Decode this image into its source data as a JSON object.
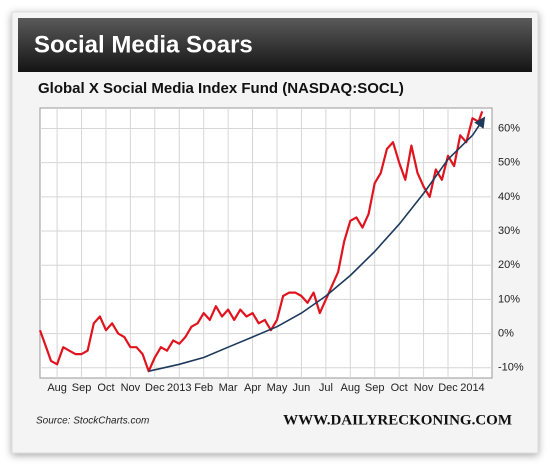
{
  "chart_data": {
    "type": "line",
    "title": "Social Media Soars",
    "subtitle": "Global X Social Media Index Fund (NASDAQ:SOCL)",
    "source": "Source: StockCharts.com",
    "credit": "WWW.DAILYRECKONING.COM",
    "grid": true,
    "xlim": [
      0.3,
      18.8
    ],
    "ylim": [
      -13,
      66
    ],
    "xticks": [
      {
        "value": 1,
        "label": "Aug"
      },
      {
        "value": 2,
        "label": "Sep"
      },
      {
        "value": 3,
        "label": "Oct"
      },
      {
        "value": 4,
        "label": "Nov"
      },
      {
        "value": 5,
        "label": "Dec"
      },
      {
        "value": 6,
        "label": "2013"
      },
      {
        "value": 7,
        "label": "Feb"
      },
      {
        "value": 8,
        "label": "Mar"
      },
      {
        "value": 9,
        "label": "Apr"
      },
      {
        "value": 10,
        "label": "May"
      },
      {
        "value": 11,
        "label": "Jun"
      },
      {
        "value": 12,
        "label": "Jul"
      },
      {
        "value": 13,
        "label": "Aug"
      },
      {
        "value": 14,
        "label": "Sep"
      },
      {
        "value": 15,
        "label": "Oct"
      },
      {
        "value": 16,
        "label": "Nov"
      },
      {
        "value": 17,
        "label": "Dec"
      },
      {
        "value": 18,
        "label": "2014"
      }
    ],
    "yticks": [
      {
        "value": -10,
        "label": "-10%"
      },
      {
        "value": 0,
        "label": "0%"
      },
      {
        "value": 10,
        "label": "10%"
      },
      {
        "value": 20,
        "label": "20%"
      },
      {
        "value": 30,
        "label": "30%"
      },
      {
        "value": 40,
        "label": "40%"
      },
      {
        "value": 50,
        "label": "50%"
      },
      {
        "value": 60,
        "label": "60%"
      }
    ],
    "series": [
      {
        "color": "#e0141e",
        "x": [
          0.3,
          0.5,
          0.75,
          1,
          1.25,
          1.5,
          1.75,
          2,
          2.25,
          2.5,
          2.75,
          3,
          3.25,
          3.5,
          3.75,
          4,
          4.25,
          4.5,
          4.75,
          5,
          5.25,
          5.5,
          5.75,
          6,
          6.25,
          6.5,
          6.75,
          7,
          7.25,
          7.5,
          7.75,
          8,
          8.25,
          8.5,
          8.75,
          9,
          9.25,
          9.5,
          9.75,
          10,
          10.25,
          10.5,
          10.75,
          11,
          11.25,
          11.5,
          11.75,
          12,
          12.25,
          12.5,
          12.75,
          13,
          13.25,
          13.5,
          13.75,
          14,
          14.25,
          14.5,
          14.75,
          15,
          15.25,
          15.5,
          15.75,
          16,
          16.25,
          16.5,
          16.75,
          17,
          17.25,
          17.5,
          17.75,
          18,
          18.25,
          18.4
        ],
        "values": [
          1,
          -3,
          -8,
          -9,
          -4,
          -5,
          -6,
          -6,
          -5,
          3,
          5,
          1,
          3,
          0,
          -1,
          -4,
          -4,
          -6,
          -11,
          -7,
          -4,
          -5,
          -2,
          -3,
          -1,
          2,
          3,
          6,
          4,
          8,
          5,
          7,
          4,
          7,
          5,
          6,
          3,
          4,
          1,
          4,
          11,
          12,
          12,
          11,
          9,
          12,
          6,
          10,
          14,
          18,
          27,
          33,
          34,
          31,
          35,
          44,
          47,
          54,
          56,
          50,
          45,
          55,
          47,
          43,
          40,
          48,
          45,
          52,
          49,
          58,
          56,
          63,
          62,
          65
        ]
      },
      {
        "color": "#1d3a5c",
        "x": [
          4.75,
          6,
          7,
          8,
          9,
          10,
          11,
          12,
          13,
          14,
          15,
          16,
          17,
          18,
          18.47
        ],
        "values": [
          -11,
          -9,
          -7,
          -4,
          -1,
          2,
          6,
          11,
          17,
          24,
          32,
          41,
          51,
          58,
          63
        ]
      }
    ]
  }
}
